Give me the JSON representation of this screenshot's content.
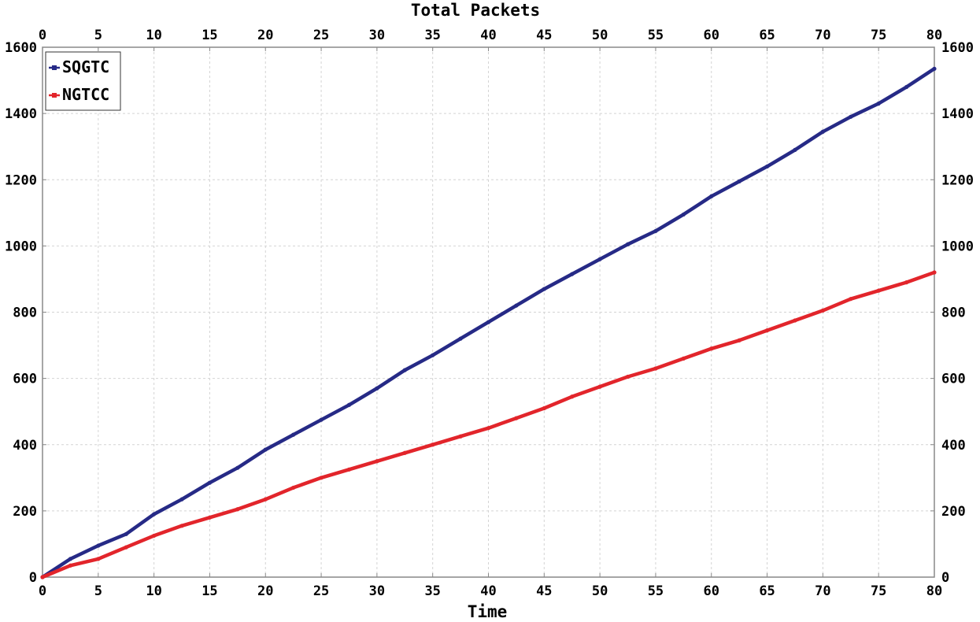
{
  "chart_data": {
    "type": "line",
    "title": "Total Packets",
    "xlabel": "Time",
    "ylabel": "",
    "xlim": [
      0,
      80
    ],
    "ylim": [
      0,
      1600
    ],
    "xticks": [
      "0",
      "5",
      "10",
      "15",
      "20",
      "25",
      "30",
      "35",
      "40",
      "45",
      "50",
      "55",
      "60",
      "65",
      "70",
      "75",
      "80"
    ],
    "yticks": [
      "0",
      "200",
      "400",
      "600",
      "800",
      "1000",
      "1200",
      "1400",
      "1600"
    ],
    "grid": true,
    "legend_position": "top-left",
    "series": [
      {
        "name": "SQGTC",
        "color": "#262a86",
        "x": [
          0,
          2.5,
          5,
          7.5,
          10,
          12.5,
          15,
          17.5,
          20,
          22.5,
          25,
          27.5,
          30,
          32.5,
          35,
          37.5,
          40,
          42.5,
          45,
          47.5,
          50,
          52.5,
          55,
          57.5,
          60,
          62.5,
          65,
          67.5,
          70,
          72.5,
          75,
          77.5,
          80
        ],
        "y": [
          0,
          55,
          95,
          130,
          190,
          235,
          285,
          330,
          385,
          430,
          475,
          520,
          570,
          625,
          670,
          720,
          770,
          820,
          870,
          915,
          960,
          1005,
          1045,
          1095,
          1150,
          1195,
          1240,
          1290,
          1345,
          1390,
          1430,
          1480,
          1535
        ]
      },
      {
        "name": "NGTCC",
        "color": "#e2252b",
        "x": [
          0,
          2.5,
          5,
          7.5,
          10,
          12.5,
          15,
          17.5,
          20,
          22.5,
          25,
          27.5,
          30,
          32.5,
          35,
          37.5,
          40,
          42.5,
          45,
          47.5,
          50,
          52.5,
          55,
          57.5,
          60,
          62.5,
          65,
          67.5,
          70,
          72.5,
          75,
          77.5,
          80
        ],
        "y": [
          0,
          35,
          55,
          90,
          125,
          155,
          180,
          205,
          235,
          270,
          300,
          325,
          350,
          375,
          400,
          425,
          450,
          480,
          510,
          545,
          575,
          605,
          630,
          660,
          690,
          715,
          745,
          775,
          805,
          840,
          865,
          890,
          920
        ]
      }
    ]
  }
}
